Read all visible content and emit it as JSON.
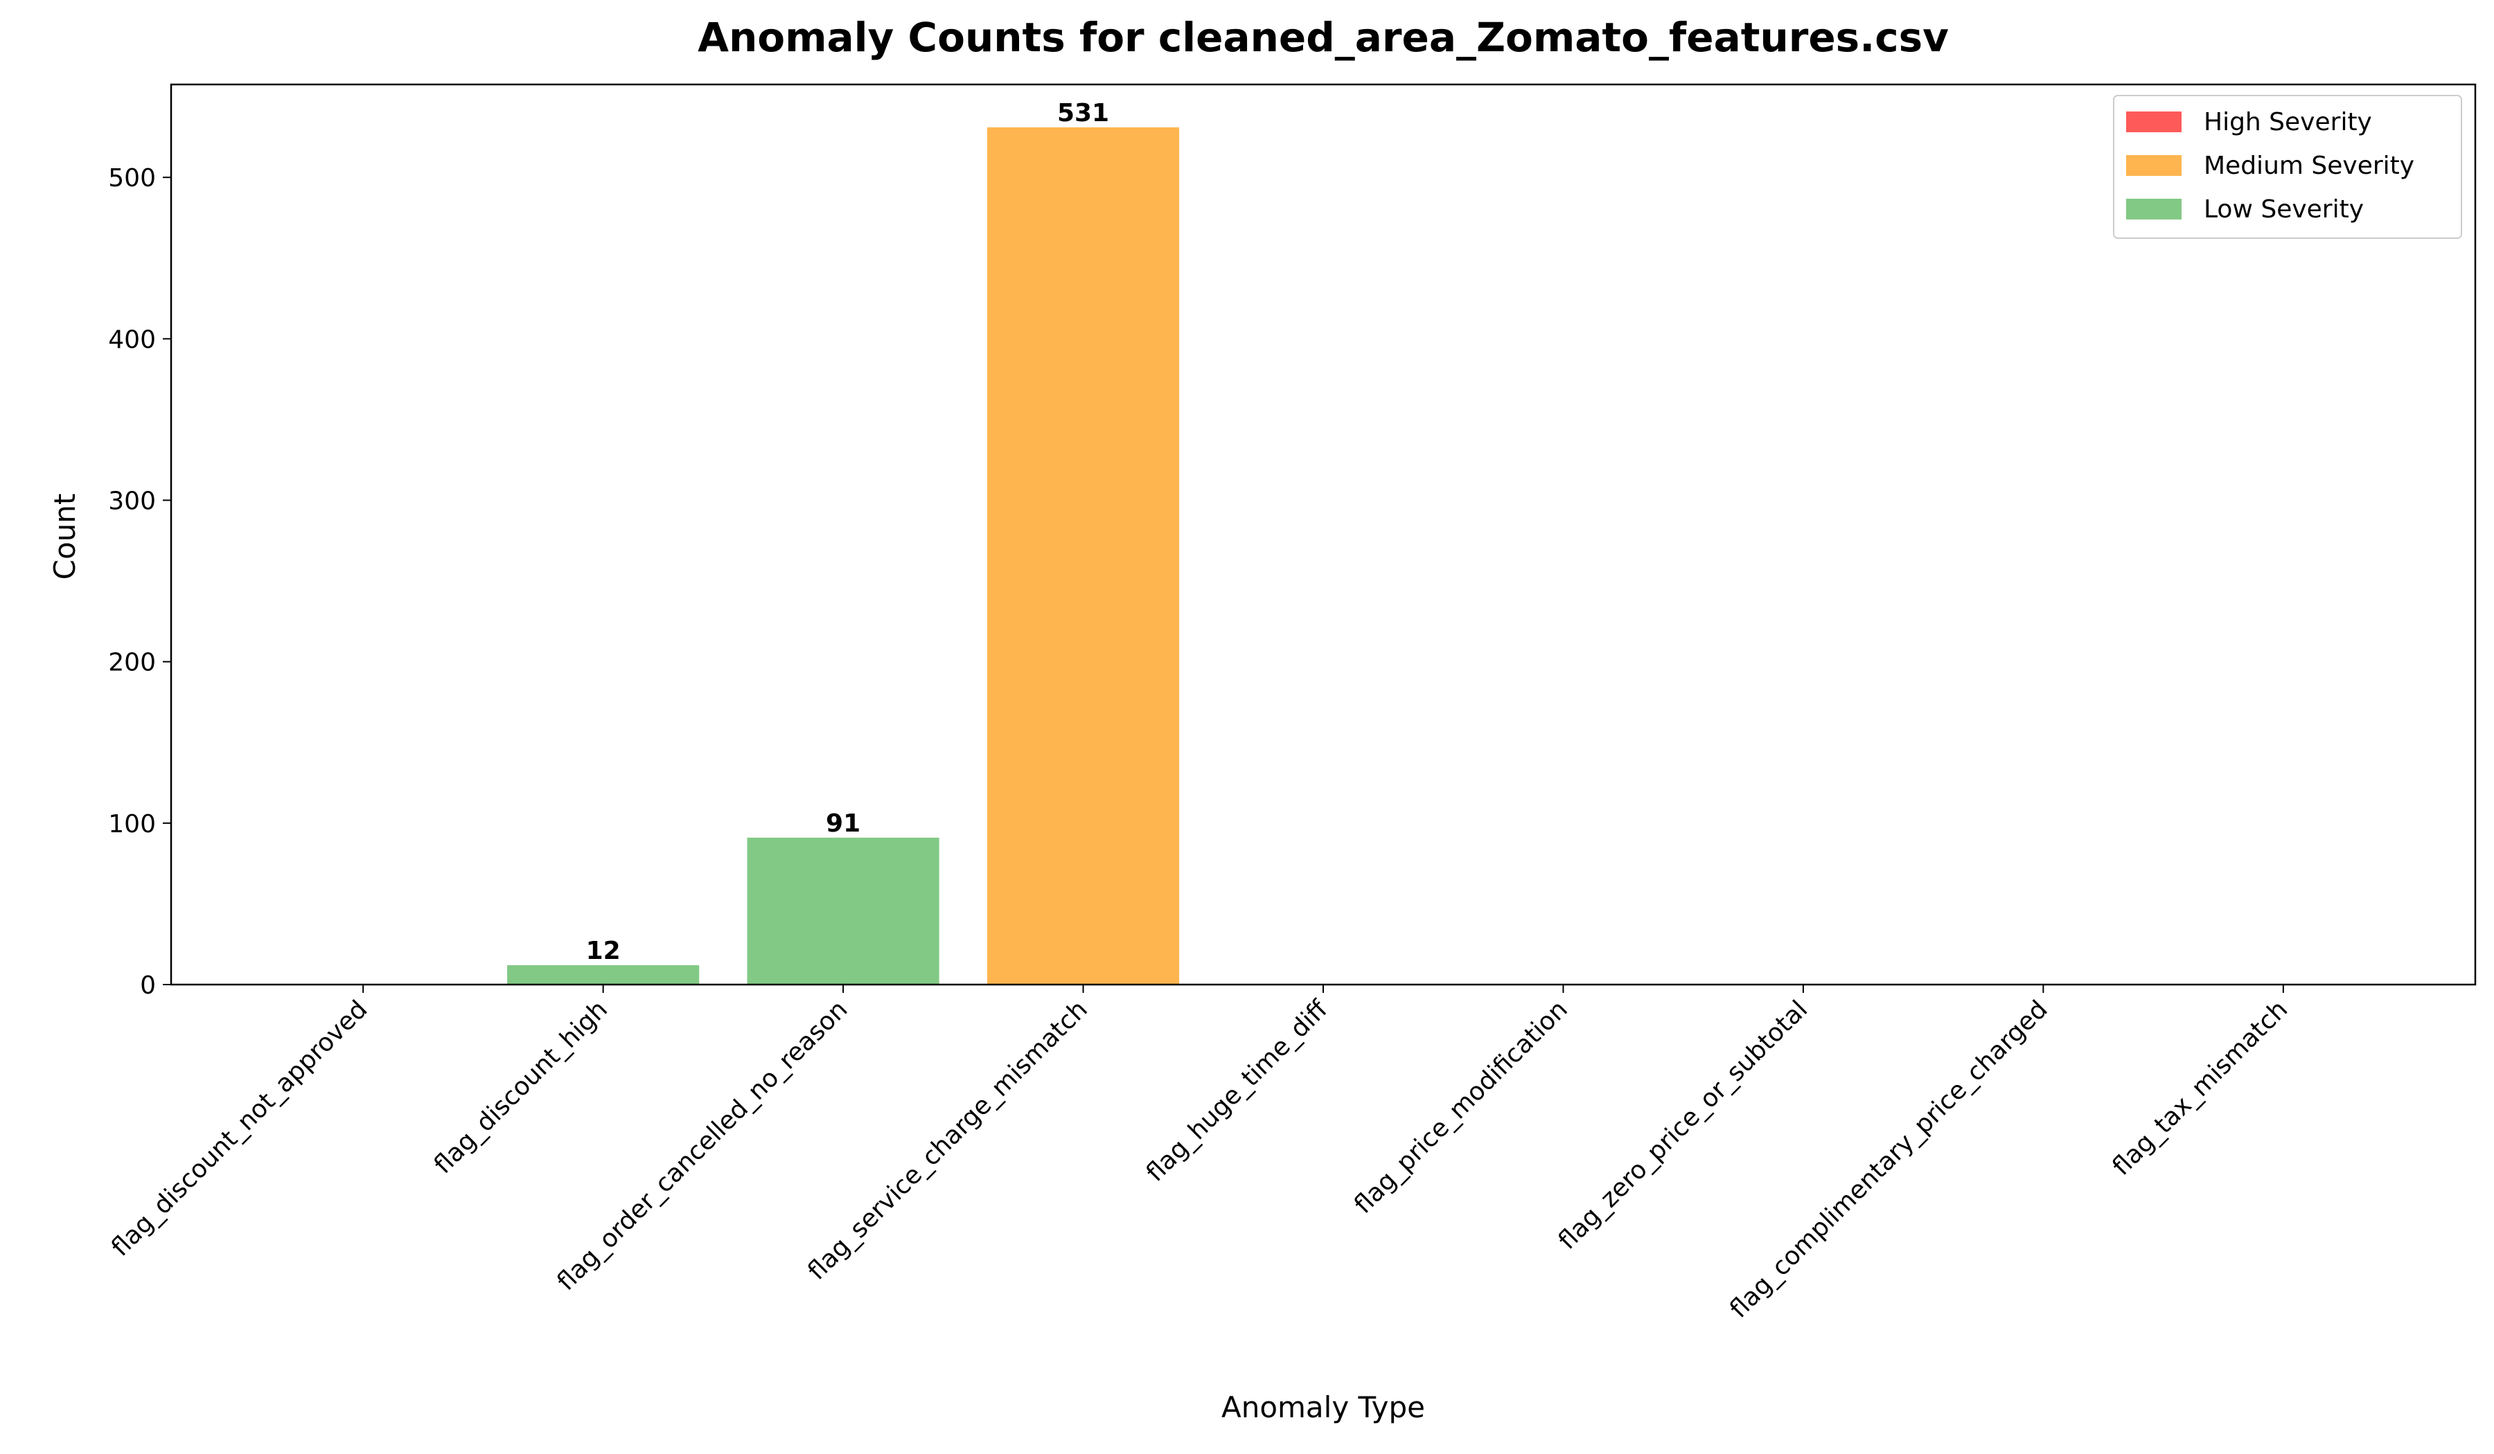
{
  "chart_data": {
    "type": "bar",
    "title": "Anomaly Counts for cleaned_area_Zomato_features.csv",
    "xlabel": "Anomaly Type",
    "ylabel": "Count",
    "ylim": [
      0,
      557.55
    ],
    "yticks": [
      0,
      100,
      200,
      300,
      400,
      500
    ],
    "categories": [
      "flag_discount_not_approved",
      "flag_discount_high",
      "flag_order_cancelled_no_reason",
      "flag_service_charge_mismatch",
      "flag_huge_time_diff",
      "flag_price_modification",
      "flag_zero_price_or_subtotal",
      "flag_complimentary_price_charged",
      "flag_tax_mismatch"
    ],
    "values": [
      0,
      12,
      91,
      531,
      0,
      0,
      0,
      0,
      0
    ],
    "severity": [
      "high",
      "low",
      "low",
      "medium",
      "high",
      "high",
      "high",
      "high",
      "high"
    ],
    "data_labels": [
      "",
      "12",
      "91",
      "531",
      "",
      "",
      "",
      "",
      ""
    ],
    "colors": {
      "high": "#ff5a5a",
      "medium": "#ffb54f",
      "low": "#82c985"
    },
    "legend": {
      "position": "top-right",
      "entries": [
        {
          "key": "high",
          "label": "High Severity"
        },
        {
          "key": "medium",
          "label": "Medium Severity"
        },
        {
          "key": "low",
          "label": "Low Severity"
        }
      ]
    },
    "grid": false
  }
}
